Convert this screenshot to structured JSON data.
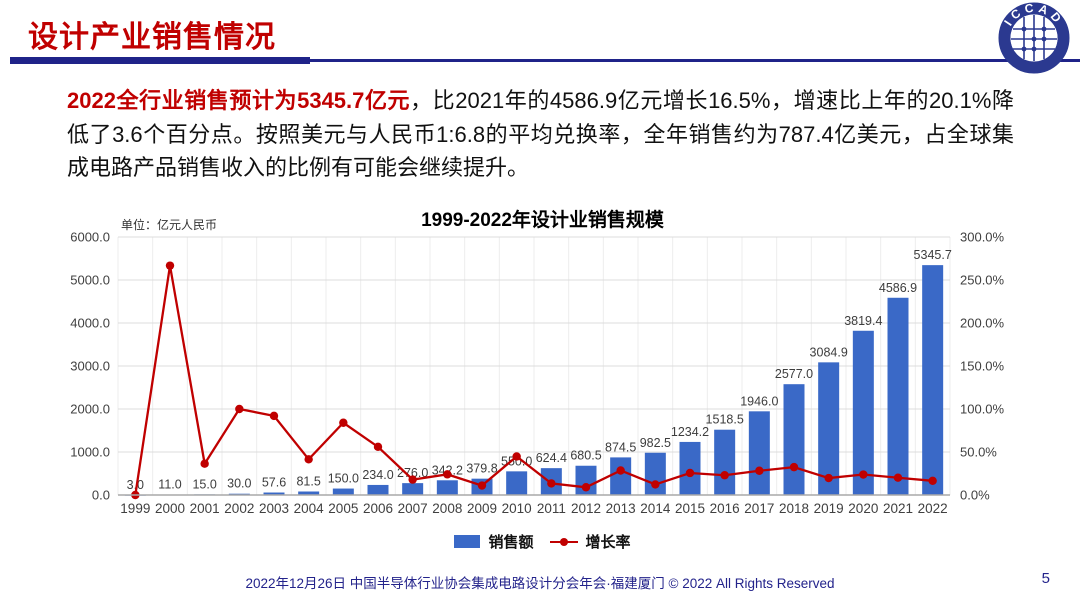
{
  "slide": {
    "header": {
      "title": "设计产业销售情况"
    },
    "logo": {
      "text": "ICCAD"
    },
    "paragraph": {
      "lead": "2022全行业销售预计为5345.7亿元",
      "rest": "，比2021年的4586.9亿元增长16.5%，增速比上年的20.1%降低了3.6个百分点。按照美元与人民币1:6.8的平均兑换率，全年销售约为787.4亿美元，占全球集成电路产品销售收入的比例有可能会继续提升。"
    },
    "legend": {
      "sales_label": "销售额",
      "growth_label": "增长率"
    },
    "footer": {
      "text": "2022年12月26日 中国半导体行业协会集成电路设计分会年会·福建厦门 © 2022 All Rights Reserved",
      "page_number": "5"
    },
    "colors": {
      "accent_red": "#C00000",
      "navy": "#1F2389",
      "bar_blue": "#3A69C7",
      "line_red": "#C00000",
      "footer_navy": "#23238B"
    }
  },
  "chart_data": {
    "type": "bar",
    "title": "1999-2022年设计业销售规模",
    "unit_label": "单位：亿元人民币",
    "categories": [
      "1999",
      "2000",
      "2001",
      "2002",
      "2003",
      "2004",
      "2005",
      "2006",
      "2007",
      "2008",
      "2009",
      "2010",
      "2011",
      "2012",
      "2013",
      "2014",
      "2015",
      "2016",
      "2017",
      "2018",
      "2019",
      "2020",
      "2021",
      "2022"
    ],
    "series": [
      {
        "name": "销售额",
        "type": "bar",
        "axis": "left",
        "color": "#3A69C7",
        "values": [
          3.0,
          11.0,
          15.0,
          30.0,
          57.6,
          81.5,
          150.0,
          234.0,
          276.0,
          342.2,
          379.8,
          550.0,
          624.4,
          680.5,
          874.5,
          982.5,
          1234.2,
          1518.5,
          1946.0,
          2577.0,
          3084.9,
          3819.4,
          4586.9,
          5345.7
        ],
        "labels": [
          "3.0",
          "11.0",
          "15.0",
          "30.0",
          "57.6",
          "81.5",
          "150.0",
          "234.0",
          "276.0",
          "342.2",
          "379.8",
          "550.0",
          "624.4",
          "680.5",
          "874.5",
          "982.5",
          "1234.2",
          "1518.5",
          "1946.0",
          "2577.0",
          "3084.9",
          "3819.4",
          "4586.9",
          "5345.7"
        ]
      },
      {
        "name": "增长率",
        "type": "line",
        "axis": "right",
        "color": "#C00000",
        "values": [
          0.0,
          266.7,
          36.4,
          100.0,
          92.0,
          41.5,
          84.0,
          56.0,
          17.9,
          24.0,
          11.0,
          44.8,
          13.5,
          9.0,
          28.5,
          12.3,
          25.6,
          23.0,
          28.2,
          32.4,
          19.7,
          23.8,
          20.1,
          16.5
        ]
      }
    ],
    "left_axis": {
      "min": 0,
      "max": 6000,
      "step": 1000,
      "ticks": [
        "0.0",
        "1000.0",
        "2000.0",
        "3000.0",
        "4000.0",
        "5000.0",
        "6000.0"
      ]
    },
    "right_axis": {
      "min": 0,
      "max": 300,
      "step": 50,
      "ticks": [
        "0.0%",
        "50.0%",
        "100.0%",
        "150.0%",
        "200.0%",
        "250.0%",
        "300.0%"
      ]
    },
    "grid": "both",
    "legend_position": "bottom"
  }
}
